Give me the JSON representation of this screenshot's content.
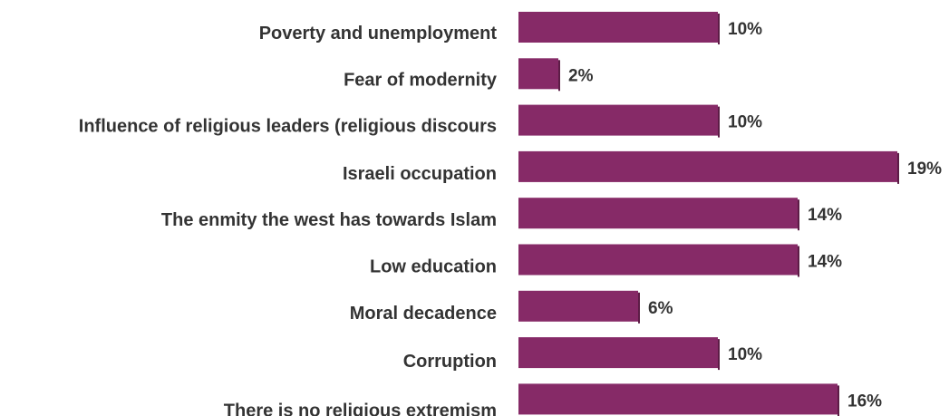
{
  "chart_data": {
    "type": "bar",
    "orientation": "horizontal",
    "categories": [
      "Poverty and unemployment",
      "Fear of modernity",
      "Influence of religious leaders (religious discours",
      "Israeli occupation",
      "The enmity the west has towards Islam",
      "Low education",
      "Moral decadence",
      "Corruption",
      "There is no religious extremism"
    ],
    "values": [
      10,
      2,
      10,
      19,
      14,
      14,
      6,
      10,
      16
    ],
    "value_labels": [
      "10%",
      "2%",
      "10%",
      "19%",
      "14%",
      "14%",
      "6%",
      "10%",
      "16%"
    ],
    "unit": "%",
    "xlim": [
      0,
      19
    ],
    "bar_color": "#862a67",
    "grid": false,
    "legend": "none",
    "title": "",
    "xlabel": "",
    "ylabel": ""
  }
}
